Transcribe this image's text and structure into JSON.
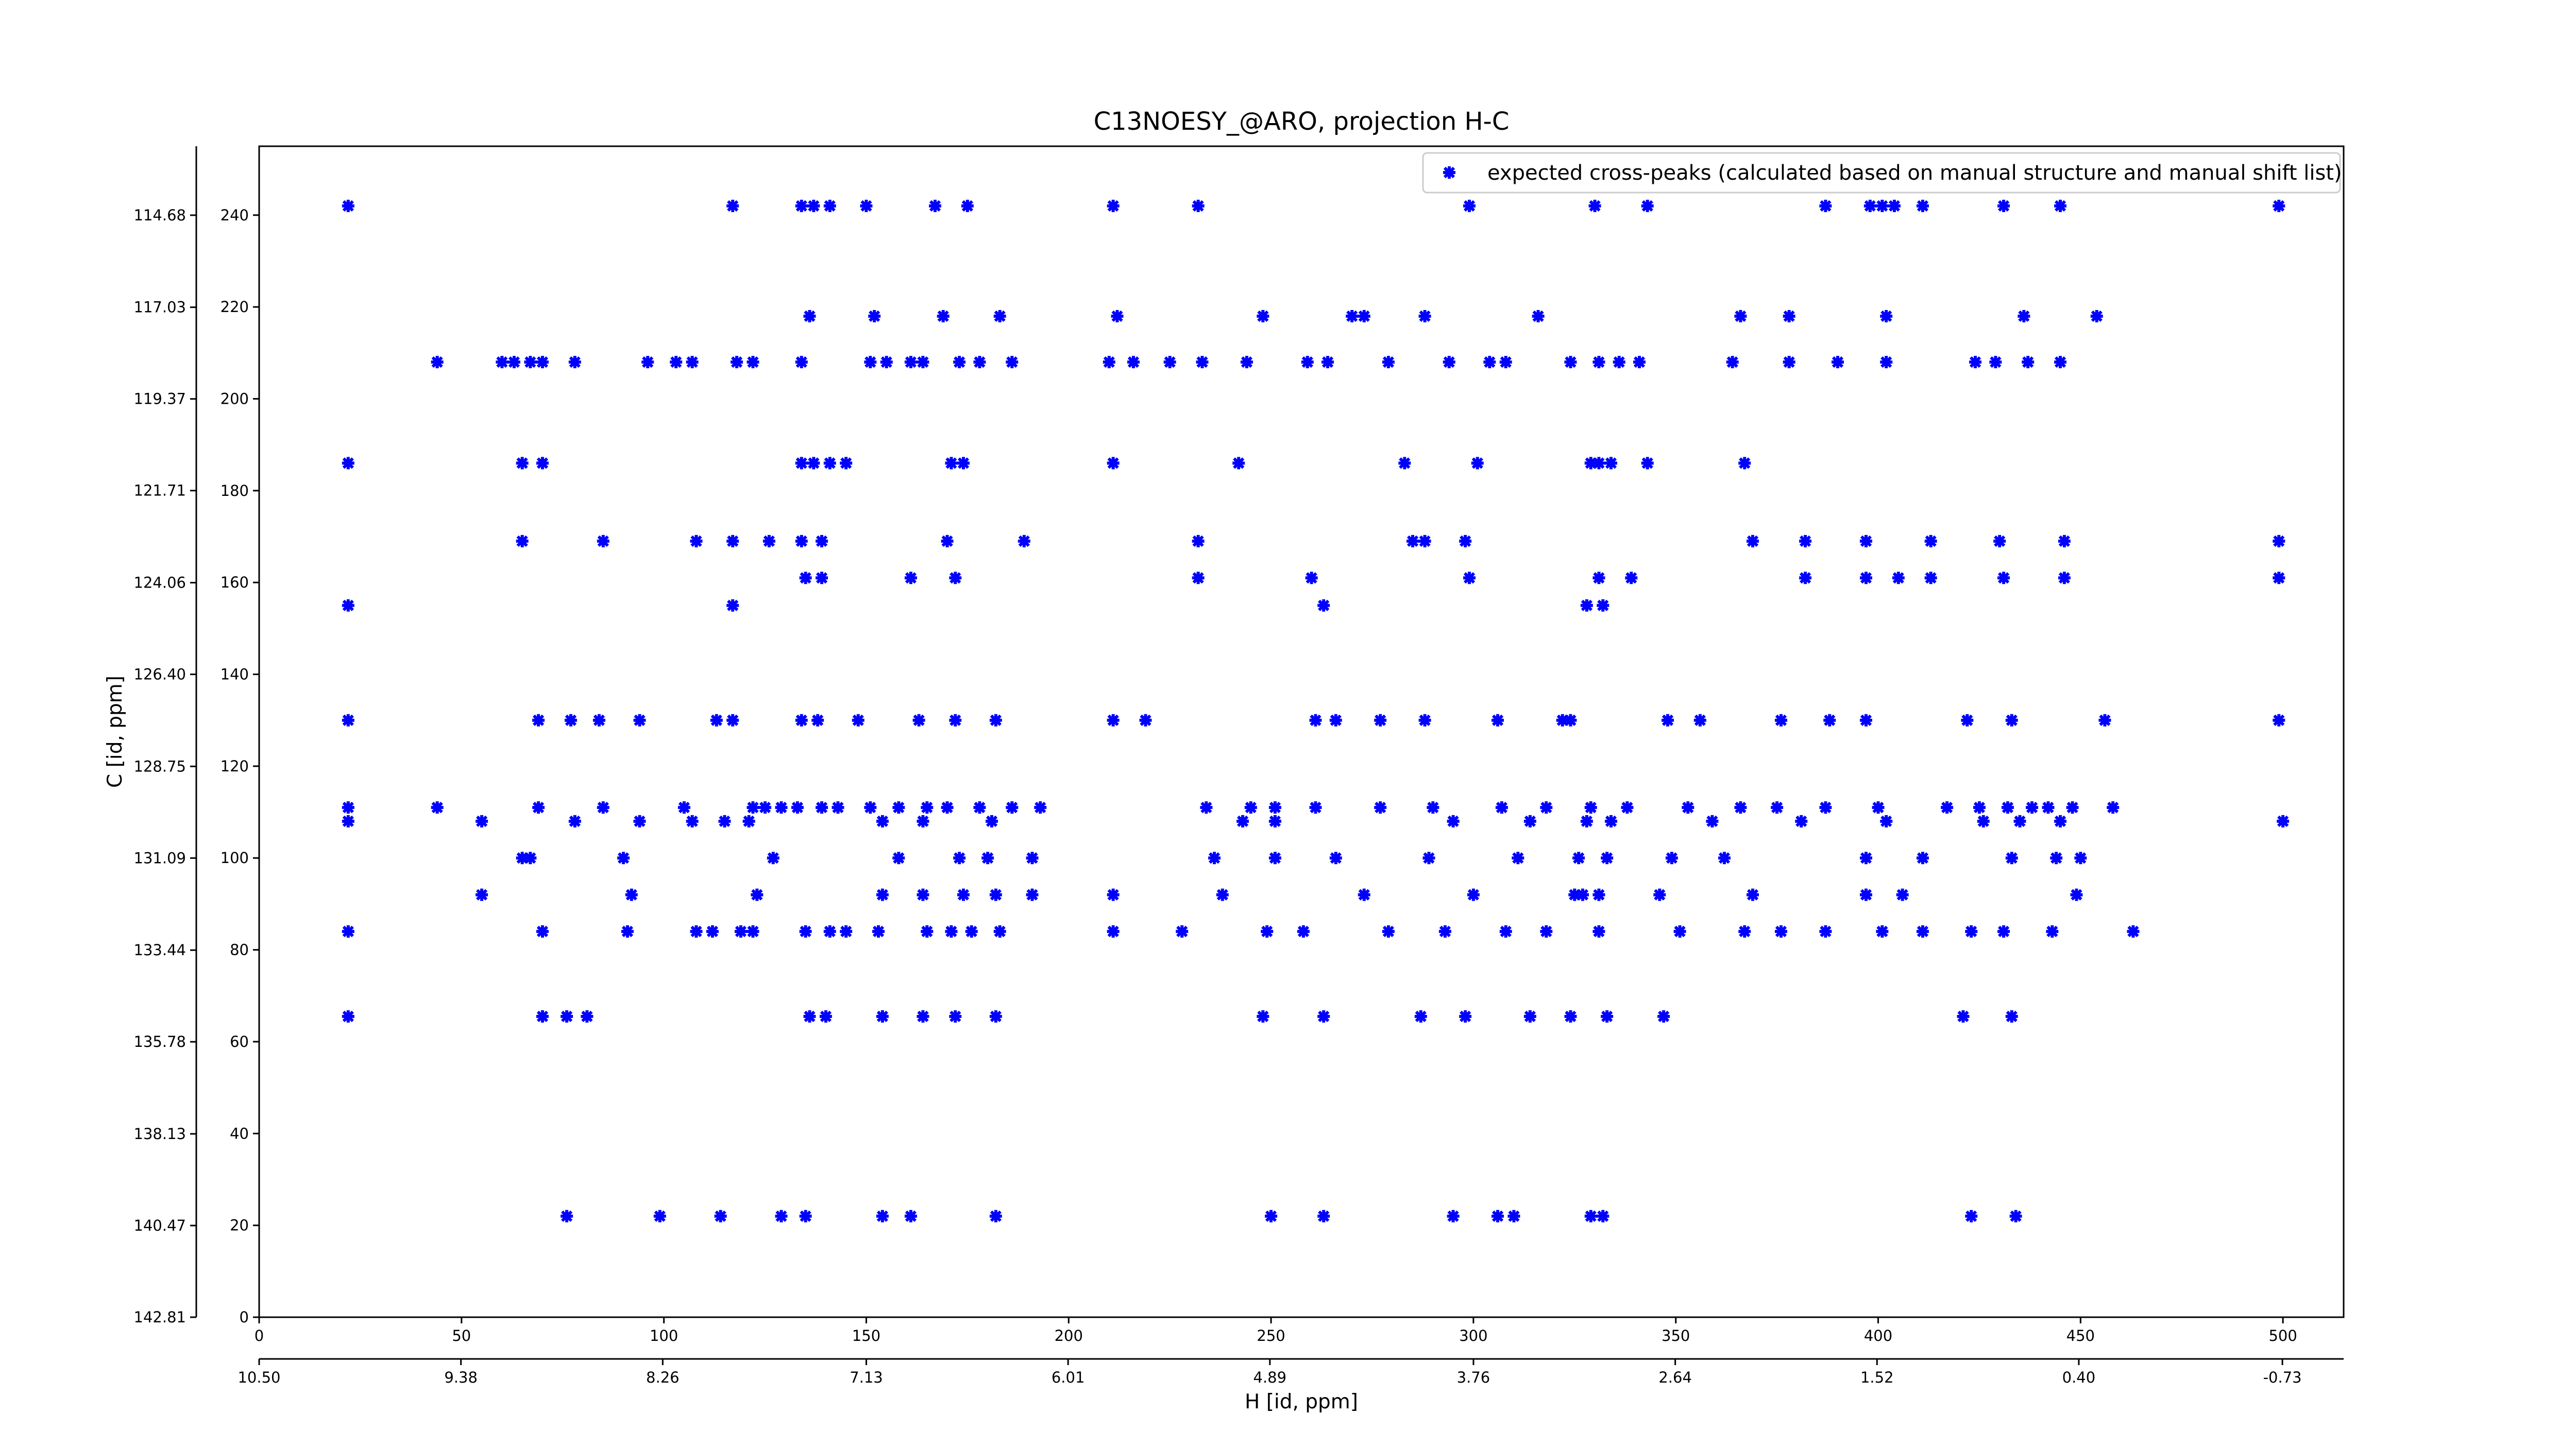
{
  "chart_data": {
    "type": "scatter",
    "title": "C13NOESY_@ARO, projection H-C",
    "xlabel": "H [id, ppm]",
    "ylabel": "C [id, ppm]",
    "xlim": [
      0,
      515
    ],
    "xticks": [
      0,
      50,
      100,
      150,
      200,
      250,
      300,
      350,
      400,
      450,
      500
    ],
    "x2lim": [
      10.5,
      -1.07
    ],
    "x2ticks": [
      {
        "value": 10.5,
        "label": "10.50"
      },
      9.38,
      8.26,
      7.13,
      6.01,
      4.89,
      3.76,
      2.64,
      1.52,
      {
        "value": 0.4,
        "label": "0.40"
      },
      -0.73
    ],
    "ylim": [
      0,
      255
    ],
    "yticks": [
      0,
      20,
      40,
      60,
      80,
      100,
      120,
      140,
      160,
      180,
      200,
      220,
      240
    ],
    "y2lim": [
      142.81,
      112.92
    ],
    "y2ticks": [
      142.81,
      140.47,
      138.13,
      135.78,
      133.44,
      131.09,
      128.75,
      {
        "value": 126.4,
        "label": "126.40"
      },
      124.06,
      121.71,
      119.37,
      117.03,
      114.68
    ],
    "legend": "upper right",
    "series": [
      {
        "name": "expected cross-peaks (calculated based on manual structure and manual shift list)",
        "color": "#0000ff",
        "x": [
          22,
          117,
          134,
          137,
          141,
          150,
          167,
          175,
          211,
          232,
          299,
          330,
          343,
          387,
          398,
          401,
          404,
          411,
          431,
          445,
          499,
          136,
          152,
          169,
          183,
          212,
          248,
          270,
          273,
          288,
          316,
          366,
          378,
          402,
          436,
          454,
          44,
          60,
          63,
          67,
          70,
          78,
          96,
          103,
          107,
          118,
          122,
          134,
          151,
          155,
          161,
          164,
          173,
          178,
          186,
          210,
          216,
          225,
          233,
          244,
          259,
          264,
          279,
          294,
          304,
          308,
          324,
          331,
          336,
          341,
          364,
          378,
          390,
          402,
          424,
          429,
          437,
          445,
          22,
          65,
          70,
          134,
          137,
          141,
          145,
          171,
          174,
          211,
          242,
          283,
          301,
          329,
          331,
          334,
          343,
          367,
          65,
          85,
          108,
          117,
          126,
          134,
          139,
          170,
          189,
          232,
          285,
          288,
          298,
          369,
          382,
          397,
          413,
          430,
          446,
          499,
          135,
          139,
          161,
          172,
          232,
          260,
          299,
          331,
          339,
          382,
          397,
          405,
          413,
          431,
          446,
          499,
          22,
          117,
          263,
          328,
          332,
          22,
          69,
          77,
          84,
          94,
          113,
          117,
          134,
          138,
          148,
          163,
          172,
          182,
          211,
          219,
          261,
          266,
          277,
          288,
          306,
          322,
          324,
          348,
          356,
          376,
          388,
          397,
          422,
          433,
          456,
          499,
          22,
          44,
          69,
          85,
          105,
          122,
          125,
          129,
          133,
          139,
          143,
          151,
          158,
          165,
          170,
          178,
          186,
          193,
          234,
          245,
          251,
          261,
          277,
          290,
          307,
          318,
          329,
          338,
          353,
          366,
          375,
          387,
          400,
          417,
          425,
          432,
          438,
          442,
          448,
          458,
          22,
          55,
          78,
          94,
          107,
          115,
          121,
          154,
          164,
          181,
          243,
          251,
          295,
          314,
          328,
          334,
          359,
          381,
          402,
          426,
          435,
          445,
          500,
          65,
          67,
          90,
          127,
          158,
          173,
          180,
          191,
          236,
          251,
          266,
          289,
          311,
          326,
          333,
          349,
          362,
          397,
          411,
          433,
          444,
          450,
          55,
          92,
          123,
          154,
          164,
          174,
          182,
          191,
          211,
          238,
          273,
          300,
          325,
          327,
          331,
          346,
          369,
          397,
          406,
          449,
          22,
          70,
          91,
          108,
          112,
          119,
          122,
          135,
          141,
          145,
          153,
          165,
          171,
          176,
          183,
          211,
          228,
          249,
          258,
          279,
          293,
          308,
          318,
          331,
          351,
          367,
          376,
          387,
          401,
          411,
          423,
          431,
          443,
          463,
          22,
          70,
          76,
          81,
          136,
          140,
          154,
          164,
          172,
          182,
          248,
          263,
          287,
          298,
          314,
          324,
          333,
          347,
          421,
          433,
          76,
          99,
          114,
          129,
          135,
          154,
          161,
          182,
          250,
          263,
          295,
          306,
          310,
          329,
          332,
          423,
          434
        ],
        "values": [
          242,
          242,
          242,
          242,
          242,
          242,
          242,
          242,
          242,
          242,
          242,
          242,
          242,
          242,
          242,
          242,
          242,
          242,
          242,
          242,
          242,
          218,
          218,
          218,
          218,
          218,
          218,
          218,
          218,
          218,
          218,
          218,
          218,
          218,
          218,
          218,
          208,
          208,
          208,
          208,
          208,
          208,
          208,
          208,
          208,
          208,
          208,
          208,
          208,
          208,
          208,
          208,
          208,
          208,
          208,
          208,
          208,
          208,
          208,
          208,
          208,
          208,
          208,
          208,
          208,
          208,
          208,
          208,
          208,
          208,
          208,
          208,
          208,
          208,
          208,
          208,
          208,
          208,
          186,
          186,
          186,
          186,
          186,
          186,
          186,
          186,
          186,
          186,
          186,
          186,
          186,
          186,
          186,
          186,
          186,
          186,
          169,
          169,
          169,
          169,
          169,
          169,
          169,
          169,
          169,
          169,
          169,
          169,
          169,
          169,
          169,
          169,
          169,
          169,
          169,
          169,
          161,
          161,
          161,
          161,
          161,
          161,
          161,
          161,
          161,
          161,
          161,
          161,
          161,
          161,
          161,
          161,
          155,
          155,
          155,
          155,
          155,
          130,
          130,
          130,
          130,
          130,
          130,
          130,
          130,
          130,
          130,
          130,
          130,
          130,
          130,
          130,
          130,
          130,
          130,
          130,
          130,
          130,
          130,
          130,
          130,
          130,
          130,
          130,
          130,
          130,
          130,
          130,
          111,
          111,
          111,
          111,
          111,
          111,
          111,
          111,
          111,
          111,
          111,
          111,
          111,
          111,
          111,
          111,
          111,
          111,
          111,
          111,
          111,
          111,
          111,
          111,
          111,
          111,
          111,
          111,
          111,
          111,
          111,
          111,
          111,
          111,
          111,
          111,
          111,
          111,
          111,
          111,
          108,
          108,
          108,
          108,
          108,
          108,
          108,
          108,
          108,
          108,
          108,
          108,
          108,
          108,
          108,
          108,
          108,
          108,
          108,
          108,
          108,
          108,
          108,
          100,
          100,
          100,
          100,
          100,
          100,
          100,
          100,
          100,
          100,
          100,
          100,
          100,
          100,
          100,
          100,
          100,
          100,
          100,
          100,
          100,
          100,
          92,
          92,
          92,
          92,
          92,
          92,
          92,
          92,
          92,
          92,
          92,
          92,
          92,
          92,
          92,
          92,
          92,
          92,
          92,
          92,
          84,
          84,
          84,
          84,
          84,
          84,
          84,
          84,
          84,
          84,
          84,
          84,
          84,
          84,
          84,
          84,
          84,
          84,
          84,
          84,
          84,
          84,
          84,
          84,
          84,
          84,
          84,
          84,
          84,
          84,
          84,
          84,
          84,
          84,
          65.5,
          65.5,
          65.5,
          65.5,
          65.5,
          65.5,
          65.5,
          65.5,
          65.5,
          65.5,
          65.5,
          65.5,
          65.5,
          65.5,
          65.5,
          65.5,
          65.5,
          65.5,
          65.5,
          65.5,
          22,
          22,
          22,
          22,
          22,
          22,
          22,
          22,
          22,
          22,
          22,
          22,
          22,
          22,
          22,
          22,
          22
        ]
      }
    ]
  }
}
